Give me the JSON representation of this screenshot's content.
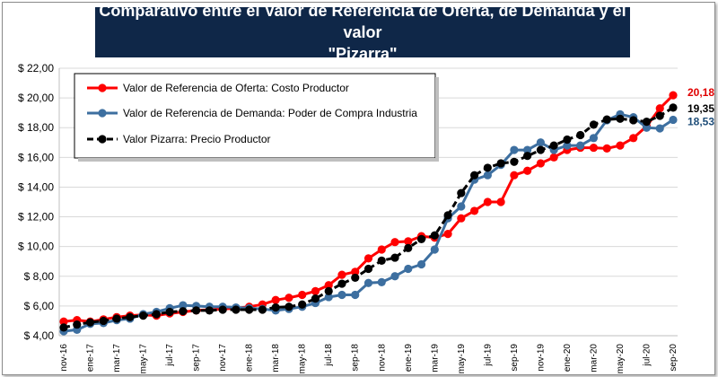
{
  "chart_data": {
    "type": "line",
    "title_line1": "Comparativo entre el Valor de Referencia de Oferta, de Demanda y el valor",
    "title_line2": "\"Pizarra\"",
    "xlabel": "",
    "ylabel": "",
    "ylim": [
      4,
      22
    ],
    "yticks": [
      4,
      6,
      8,
      10,
      12,
      14,
      16,
      18,
      20,
      22
    ],
    "ytick_labels": [
      "$ 4,00",
      "$ 6,00",
      "$ 8,00",
      "$ 10,00",
      "$ 12,00",
      "$ 14,00",
      "$ 16,00",
      "$ 18,00",
      "$ 20,00",
      "$ 22,00"
    ],
    "grid": true,
    "legend_position": "top-left",
    "x": [
      "nov-16",
      "dic-16",
      "ene-17",
      "feb-17",
      "mar-17",
      "abr-17",
      "may-17",
      "jun-17",
      "jul-17",
      "ago-17",
      "sep-17",
      "oct-17",
      "nov-17",
      "dic-17",
      "ene-18",
      "feb-18",
      "mar-18",
      "abr-18",
      "may-18",
      "jun-18",
      "jul-18",
      "ago-18",
      "sep-18",
      "oct-18",
      "nov-18",
      "dic-18",
      "ene-19",
      "feb-19",
      "mar-19",
      "abr-19",
      "may-19",
      "jun-19",
      "jul-19",
      "ago-19",
      "sep-19",
      "oct-19",
      "nov-19",
      "dic-19",
      "ene-20",
      "feb-20",
      "mar-20",
      "abr-20",
      "may-20",
      "jun-20",
      "jul-20",
      "ago-20",
      "sep-20"
    ],
    "x_tick_labels": [
      "nov-16",
      "ene-17",
      "mar-17",
      "may-17",
      "jul-17",
      "sep-17",
      "nov-17",
      "ene-18",
      "mar-18",
      "may-18",
      "jul-18",
      "sep-18",
      "nov-18",
      "ene-19",
      "mar-19",
      "may-19",
      "jul-19",
      "sep-19",
      "nov-19",
      "ene-20",
      "mar-20",
      "may-20",
      "jul-20",
      "sep-20"
    ],
    "series": [
      {
        "name": "Valor de Referencia de Oferta: Costo Productor",
        "color": "#ff0000",
        "values": [
          4.95,
          5.05,
          4.95,
          5.1,
          5.25,
          5.35,
          5.4,
          5.35,
          5.5,
          5.6,
          5.7,
          5.75,
          5.8,
          5.85,
          5.95,
          6.1,
          6.4,
          6.55,
          6.75,
          7.0,
          7.4,
          8.1,
          8.3,
          9.2,
          9.8,
          10.3,
          10.35,
          10.7,
          10.6,
          10.85,
          11.9,
          12.4,
          13.0,
          13.0,
          14.8,
          15.1,
          15.6,
          16.0,
          16.5,
          16.65,
          16.65,
          16.6,
          16.8,
          17.3,
          18.1,
          19.3,
          20.18
        ]
      },
      {
        "name": "Valor de Referencia de Demanda: Poder de Compra Industria",
        "color": "#3d6fa0",
        "values": [
          4.3,
          4.4,
          4.8,
          4.85,
          5.05,
          5.15,
          5.45,
          5.6,
          5.85,
          6.05,
          6.0,
          5.95,
          5.95,
          5.9,
          5.85,
          5.8,
          5.7,
          5.8,
          5.95,
          6.2,
          6.6,
          6.75,
          6.75,
          7.55,
          7.6,
          8.0,
          8.5,
          8.8,
          9.8,
          11.9,
          12.7,
          14.5,
          14.8,
          15.5,
          16.5,
          16.5,
          17.0,
          16.5,
          16.8,
          16.8,
          17.3,
          18.5,
          18.9,
          18.7,
          18.0,
          17.95,
          18.53
        ]
      },
      {
        "name": "Valor Pizarra: Precio Productor",
        "color": "#000000",
        "values": [
          4.55,
          4.75,
          4.9,
          5.0,
          5.15,
          5.25,
          5.35,
          5.45,
          5.6,
          5.65,
          5.7,
          5.7,
          5.75,
          5.75,
          5.75,
          5.75,
          5.9,
          5.95,
          6.1,
          6.5,
          7.0,
          7.5,
          7.9,
          8.5,
          9.05,
          9.25,
          9.9,
          10.5,
          10.75,
          12.1,
          13.6,
          14.8,
          15.3,
          15.6,
          15.7,
          16.1,
          16.5,
          16.8,
          17.2,
          17.5,
          18.2,
          18.55,
          18.6,
          18.5,
          18.4,
          18.8,
          19.35
        ]
      }
    ],
    "end_labels": [
      {
        "text": "20,18",
        "color": "#e00000"
      },
      {
        "text": "19,35",
        "color": "#000000"
      },
      {
        "text": "18,53",
        "color": "#1f4e79"
      }
    ]
  }
}
